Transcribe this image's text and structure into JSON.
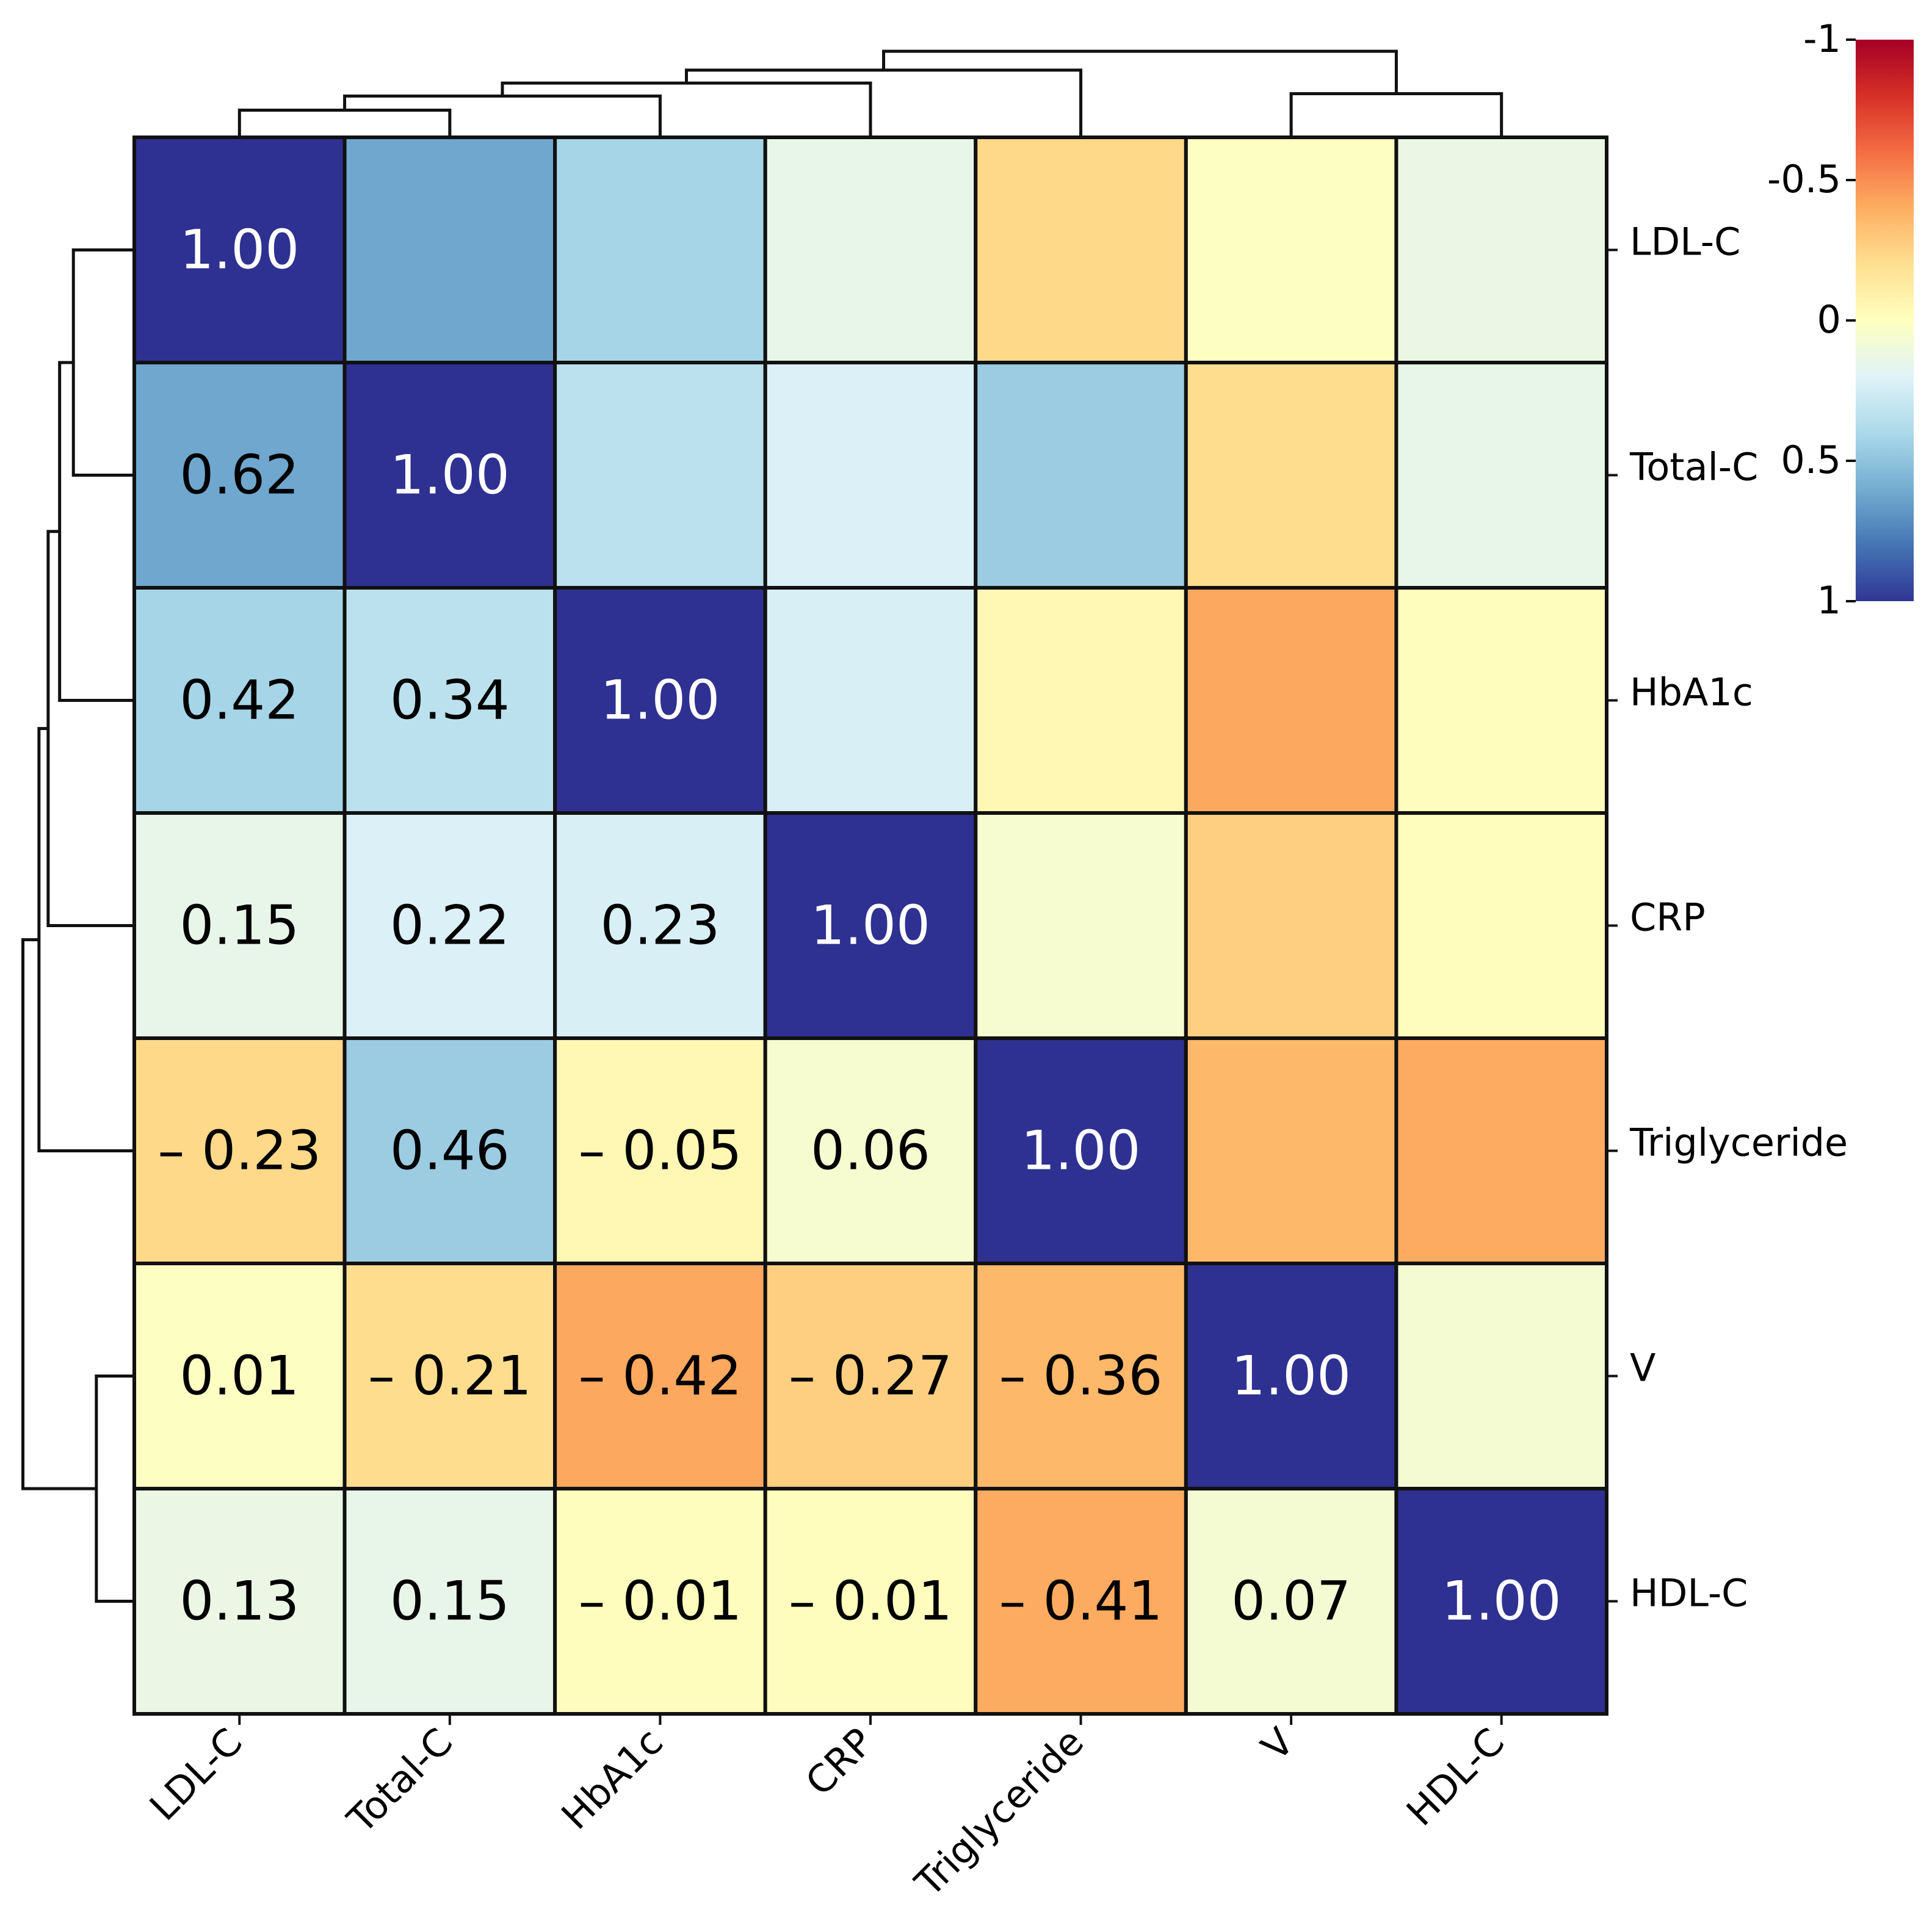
{
  "chart_data": {
    "type": "heatmap",
    "title": "",
    "variables": [
      "LDL-C",
      "Total-C",
      "HbA1c",
      "CRP",
      "Triglyceride",
      "V",
      "HDL-C"
    ],
    "matrix": [
      [
        1.0,
        0.62,
        0.42,
        0.15,
        -0.23,
        0.01,
        0.13
      ],
      [
        0.62,
        1.0,
        0.34,
        0.22,
        0.46,
        -0.21,
        0.15
      ],
      [
        0.42,
        0.34,
        1.0,
        0.23,
        -0.05,
        -0.42,
        -0.01
      ],
      [
        0.15,
        0.22,
        0.23,
        1.0,
        0.06,
        -0.27,
        -0.01
      ],
      [
        -0.23,
        0.46,
        -0.05,
        0.06,
        1.0,
        -0.36,
        -0.41
      ],
      [
        0.01,
        -0.21,
        -0.42,
        -0.27,
        -0.36,
        1.0,
        0.07
      ],
      [
        0.13,
        0.15,
        -0.01,
        -0.01,
        -0.41,
        0.07,
        1.0
      ]
    ],
    "cell_labels": [
      [
        "1.00",
        "",
        "",
        "",
        "",
        "",
        ""
      ],
      [
        "0.62",
        "1.00",
        "",
        "",
        "",
        "",
        ""
      ],
      [
        "0.42",
        "0.34",
        "1.00",
        "",
        "",
        "",
        ""
      ],
      [
        "0.15",
        "0.22",
        "0.23",
        "1.00",
        "",
        "",
        ""
      ],
      [
        "– 0.23",
        "0.46",
        "– 0.05",
        "0.06",
        "1.00",
        "",
        ""
      ],
      [
        "0.01",
        "– 0.21",
        "– 0.42",
        "– 0.27",
        "– 0.36",
        "1.00",
        ""
      ],
      [
        "0.13",
        "0.15",
        "– 0.01",
        "– 0.01",
        "– 0.41",
        "0.07",
        "1.00"
      ]
    ],
    "colorbar": {
      "range": [
        -1,
        1
      ],
      "ticks": [
        -1,
        -0.5,
        0,
        0.5,
        1
      ],
      "tick_labels": [
        "-1",
        "-0.5",
        "0",
        "0.5",
        "1"
      ],
      "colors": [
        "#a50026",
        "#d73027",
        "#f46d43",
        "#fdae61",
        "#fee090",
        "#ffffbf",
        "#e0f3f8",
        "#abd9e9",
        "#74add1",
        "#4575b4",
        "#313695"
      ],
      "diagonal_color": "#2e3191"
    },
    "dendrogram": {
      "top": [
        [
          0,
          1,
          0.22
        ],
        [
          7,
          2,
          0.34
        ],
        [
          8,
          3,
          0.45
        ],
        [
          9,
          4,
          0.56
        ],
        [
          5,
          6,
          0.36
        ],
        [
          10,
          11,
          0.72
        ]
      ],
      "left": [
        [
          5,
          6,
          0.32
        ],
        [
          0,
          1,
          0.52
        ],
        [
          8,
          2,
          0.64
        ],
        [
          9,
          3,
          0.74
        ],
        [
          10,
          4,
          0.82
        ],
        [
          7,
          11,
          0.96
        ]
      ]
    },
    "xlabel": "",
    "ylabel": ""
  }
}
